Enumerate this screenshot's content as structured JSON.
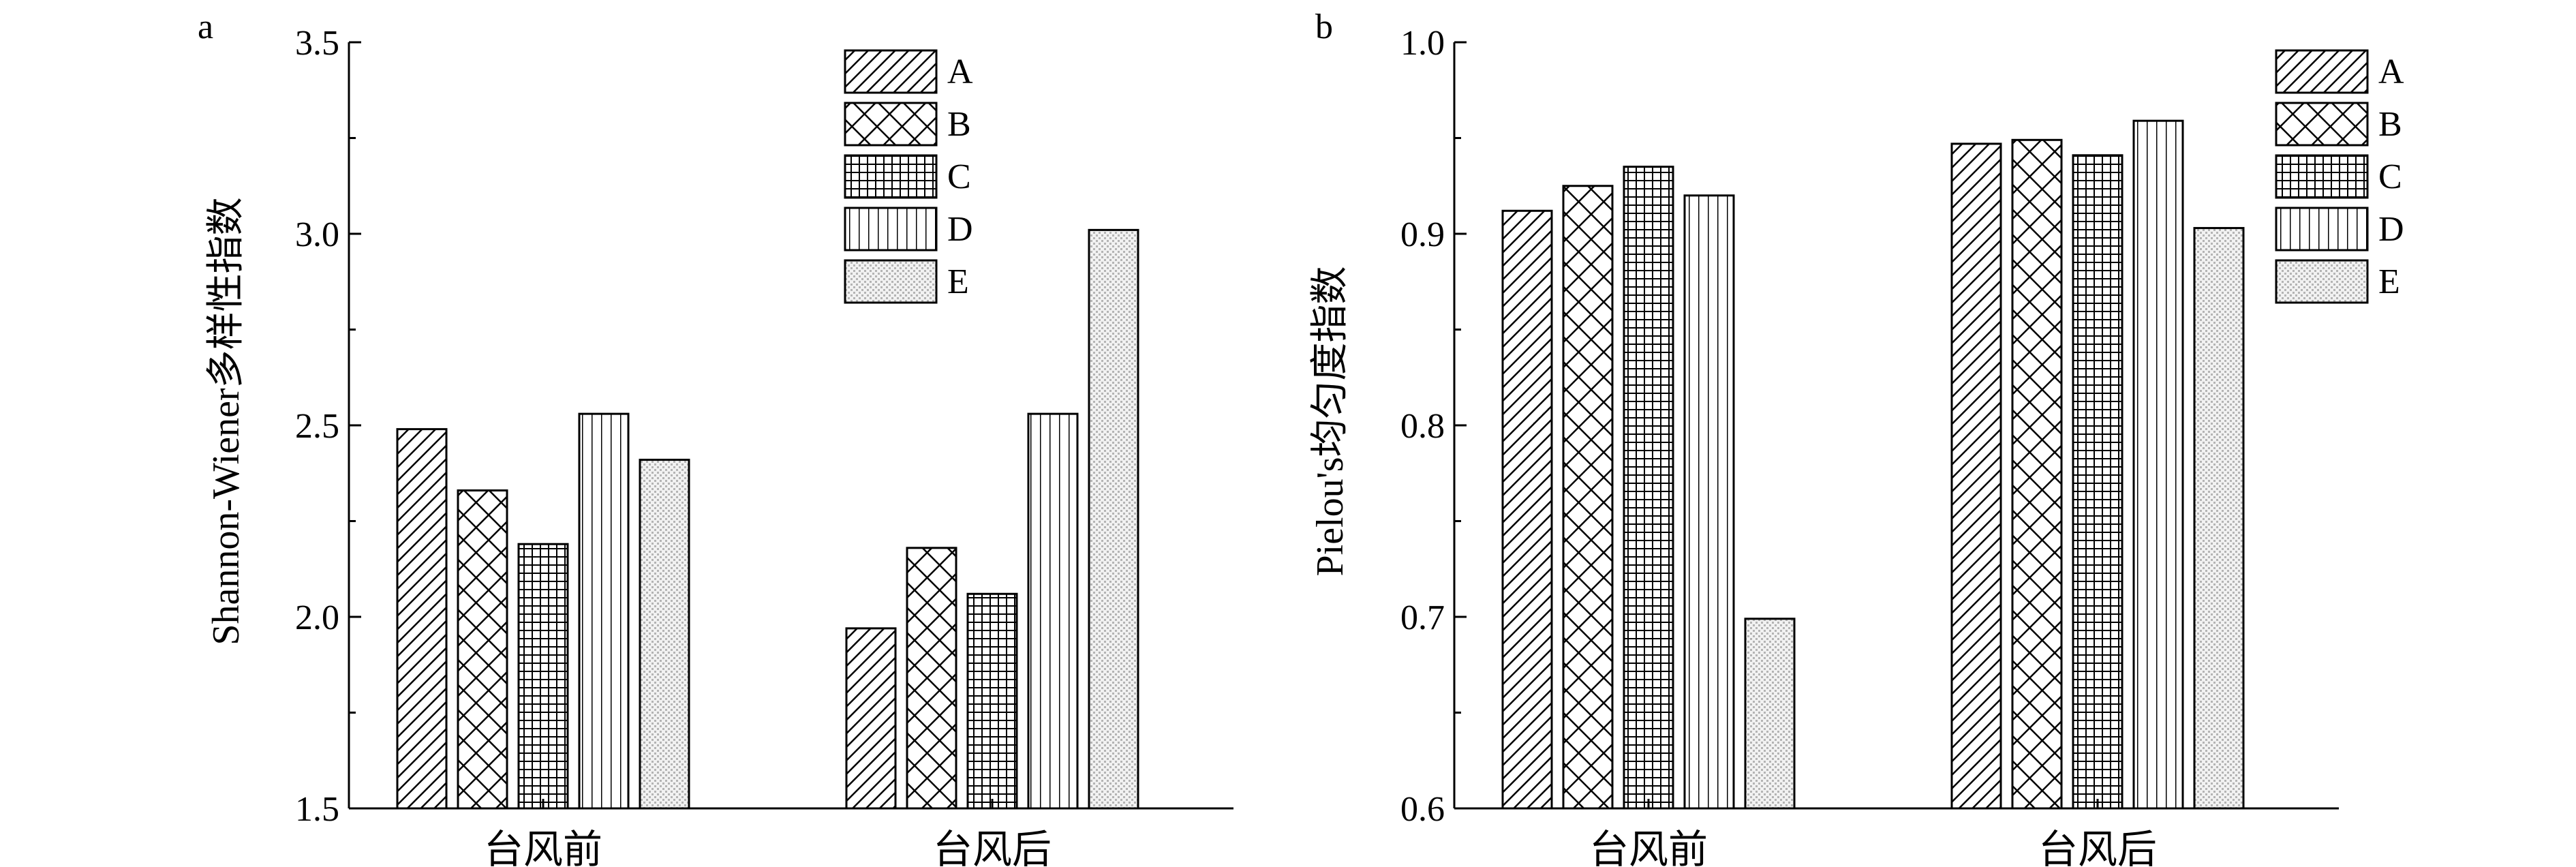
{
  "chart_data": [
    {
      "panel_label": "a",
      "type": "bar",
      "categories": [
        "台风前",
        "台风后"
      ],
      "ylabel": "Shannon-Wiener多样性指数",
      "xlabel": "",
      "ylim": [
        1.5,
        3.5
      ],
      "yticks": [
        "1.5",
        "2.0",
        "2.5",
        "3.0",
        "3.5"
      ],
      "grid": false,
      "legend_position": "top-right",
      "series": [
        {
          "name": "A",
          "pattern": "diagonal",
          "values": [
            2.49,
            1.97
          ]
        },
        {
          "name": "B",
          "pattern": "crosshatch",
          "values": [
            2.33,
            2.18
          ]
        },
        {
          "name": "C",
          "pattern": "grid",
          "values": [
            2.19,
            2.06
          ]
        },
        {
          "name": "D",
          "pattern": "vertical",
          "values": [
            2.53,
            2.53
          ]
        },
        {
          "name": "E",
          "pattern": "dots",
          "values": [
            2.41,
            3.01
          ]
        }
      ]
    },
    {
      "panel_label": "b",
      "type": "bar",
      "categories": [
        "台风前",
        "台风后"
      ],
      "ylabel": "Pielou's均匀度指数",
      "xlabel": "",
      "ylim": [
        0.6,
        1.0
      ],
      "yticks": [
        "0.6",
        "0.7",
        "0.8",
        "0.9",
        "1.0"
      ],
      "grid": false,
      "legend_position": "top-right",
      "series": [
        {
          "name": "A",
          "pattern": "diagonal",
          "values": [
            0.912,
            0.947
          ]
        },
        {
          "name": "B",
          "pattern": "crosshatch",
          "values": [
            0.925,
            0.949
          ]
        },
        {
          "name": "C",
          "pattern": "grid",
          "values": [
            0.935,
            0.941
          ]
        },
        {
          "name": "D",
          "pattern": "vertical",
          "values": [
            0.92,
            0.959
          ]
        },
        {
          "name": "E",
          "pattern": "dots",
          "values": [
            0.699,
            0.903
          ]
        }
      ]
    }
  ]
}
